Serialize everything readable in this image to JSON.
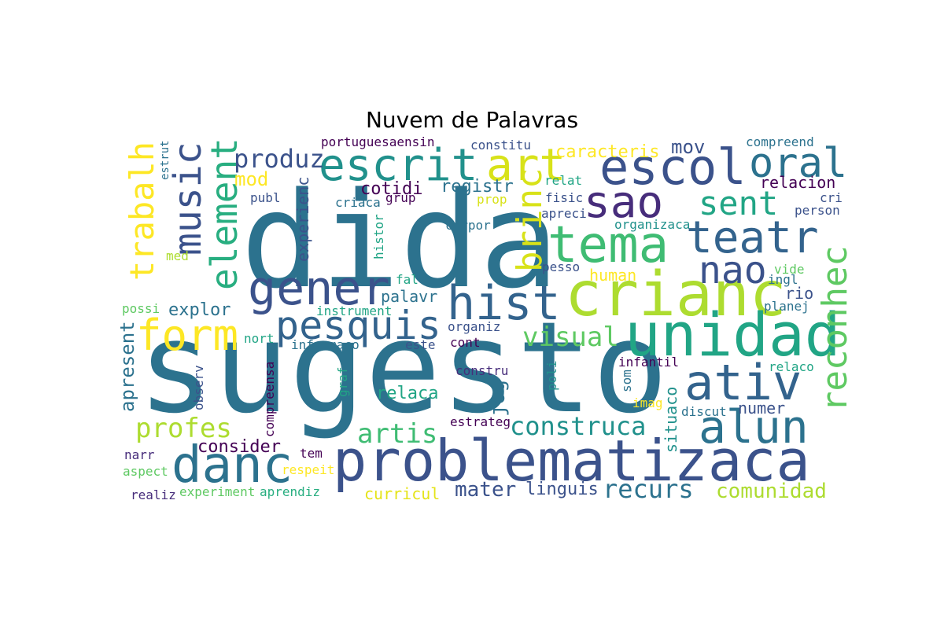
{
  "title": "Nuvem de Palavras",
  "palette": [
    "#440154",
    "#472d7b",
    "#3b528b",
    "#2c728e",
    "#21918c",
    "#28ae80",
    "#5ec962",
    "#addc30",
    "#fde725"
  ],
  "words": [
    {
      "text": "dida",
      "color": "#2c728e"
    },
    {
      "text": "sugesto",
      "color": "#2c728e"
    },
    {
      "text": "problematizaca",
      "color": "#3b528b"
    },
    {
      "text": "escrit",
      "color": "#21918c"
    },
    {
      "text": "art",
      "color": "#d8e219"
    },
    {
      "text": "escol",
      "color": "#3b528b"
    },
    {
      "text": "oral",
      "color": "#2c728e"
    },
    {
      "text": "sao",
      "color": "#472d7b"
    },
    {
      "text": "tema",
      "color": "#3fbc73"
    },
    {
      "text": "teatr",
      "color": "#33638d"
    },
    {
      "text": "crianc",
      "color": "#addc30"
    },
    {
      "text": "unidad",
      "color": "#21a585"
    },
    {
      "text": "hist",
      "color": "#33638d"
    },
    {
      "text": "gener",
      "color": "#3b528b"
    },
    {
      "text": "music",
      "color": "#3b528b"
    },
    {
      "text": "element",
      "color": "#28ae80"
    },
    {
      "text": "trabalh",
      "color": "#fde725"
    },
    {
      "text": "pesquis",
      "color": "#33638d"
    },
    {
      "text": "form",
      "color": "#fde725"
    },
    {
      "text": "ativ",
      "color": "#33638d"
    },
    {
      "text": "alun",
      "color": "#2c728e"
    },
    {
      "text": "danc",
      "color": "#2c728e"
    },
    {
      "text": "reconhec",
      "color": "#5ec962"
    },
    {
      "text": "brinc",
      "color": "#d8e219"
    },
    {
      "text": "nao",
      "color": "#3b528b"
    },
    {
      "text": "sent",
      "color": "#21a585"
    },
    {
      "text": "produz",
      "color": "#3b528b"
    },
    {
      "text": "visual",
      "color": "#5ec962"
    },
    {
      "text": "construca",
      "color": "#21918c"
    },
    {
      "text": "profes",
      "color": "#addc30"
    },
    {
      "text": "artis",
      "color": "#3fbc73"
    },
    {
      "text": "recurs",
      "color": "#2c728e"
    },
    {
      "text": "comunidad",
      "color": "#addc30"
    },
    {
      "text": "mater",
      "color": "#3b528b"
    },
    {
      "text": "linguis",
      "color": "#3b528b"
    },
    {
      "text": "curricul",
      "color": "#e5e419"
    },
    {
      "text": "apresent",
      "color": "#2c728e"
    },
    {
      "text": "mov",
      "color": "#3b528b"
    },
    {
      "text": "caracteris",
      "color": "#fde725"
    },
    {
      "text": "mod",
      "color": "#fde725"
    },
    {
      "text": "experienc",
      "color": "#3b528b"
    },
    {
      "text": "cotidi",
      "color": "#440154"
    },
    {
      "text": "registr",
      "color": "#2c728e"
    },
    {
      "text": "palavr",
      "color": "#2c728e"
    },
    {
      "text": "explor",
      "color": "#2c728e"
    },
    {
      "text": "jog",
      "color": "#2c728e"
    },
    {
      "text": "relaca",
      "color": "#21a585"
    },
    {
      "text": "consider",
      "color": "#440154"
    },
    {
      "text": "numer",
      "color": "#3b528b"
    },
    {
      "text": "situaco",
      "color": "#21918c"
    },
    {
      "text": "human",
      "color": "#fde725"
    },
    {
      "text": "rio",
      "color": "#3b528b"
    },
    {
      "text": "relacion",
      "color": "#440154"
    },
    {
      "text": "compreend",
      "color": "#2c728e"
    },
    {
      "text": "portuguesaensin",
      "color": "#440154"
    },
    {
      "text": "constitu",
      "color": "#3b528b"
    },
    {
      "text": "estrut",
      "color": "#2c728e"
    },
    {
      "text": "publ",
      "color": "#3b528b"
    },
    {
      "text": "criaca",
      "color": "#2c728e"
    },
    {
      "text": "grup",
      "color": "#440154"
    },
    {
      "text": "prop",
      "color": "#d8e219"
    },
    {
      "text": "relat",
      "color": "#21a585"
    },
    {
      "text": "fisic",
      "color": "#3b528b"
    },
    {
      "text": "apreci",
      "color": "#3b528b"
    },
    {
      "text": "cri",
      "color": "#3b528b"
    },
    {
      "text": "person",
      "color": "#3b528b"
    },
    {
      "text": "corpor",
      "color": "#2c728e"
    },
    {
      "text": "organizaca",
      "color": "#21918c"
    },
    {
      "text": "histor",
      "color": "#21a585"
    },
    {
      "text": "med",
      "color": "#addc30"
    },
    {
      "text": "possi",
      "color": "#5ec962"
    },
    {
      "text": "fal",
      "color": "#21a585"
    },
    {
      "text": "instrument",
      "color": "#21a585"
    },
    {
      "text": "pesso",
      "color": "#3b528b"
    },
    {
      "text": "vide",
      "color": "#5ec962"
    },
    {
      "text": "ingl",
      "color": "#2c728e"
    },
    {
      "text": "planej",
      "color": "#2c728e"
    },
    {
      "text": "nort",
      "color": "#21a585"
    },
    {
      "text": "informaco",
      "color": "#2c728e"
    },
    {
      "text": "este",
      "color": "#3b528b"
    },
    {
      "text": "organiz",
      "color": "#3b528b"
    },
    {
      "text": "cont",
      "color": "#440154"
    },
    {
      "text": "infantil",
      "color": "#440154"
    },
    {
      "text": "observ",
      "color": "#3b528b"
    },
    {
      "text": "compreensa",
      "color": "#440154"
    },
    {
      "text": "graf",
      "color": "#21a585"
    },
    {
      "text": "constru",
      "color": "#472d7b"
    },
    {
      "text": "poli",
      "color": "#21918c"
    },
    {
      "text": "som",
      "color": "#2c728e"
    },
    {
      "text": "relaco",
      "color": "#21a585"
    },
    {
      "text": "imag",
      "color": "#fde725"
    },
    {
      "text": "discut",
      "color": "#2c728e"
    },
    {
      "text": "estrateg",
      "color": "#440154"
    },
    {
      "text": "narr",
      "color": "#472d7b"
    },
    {
      "text": "tem",
      "color": "#440154"
    },
    {
      "text": "aspect",
      "color": "#5ec962"
    },
    {
      "text": "respeit",
      "color": "#fde725"
    },
    {
      "text": "realiz",
      "color": "#472d7b"
    },
    {
      "text": "experiment",
      "color": "#5ec962"
    },
    {
      "text": "aprendiz",
      "color": "#28ae80"
    }
  ]
}
